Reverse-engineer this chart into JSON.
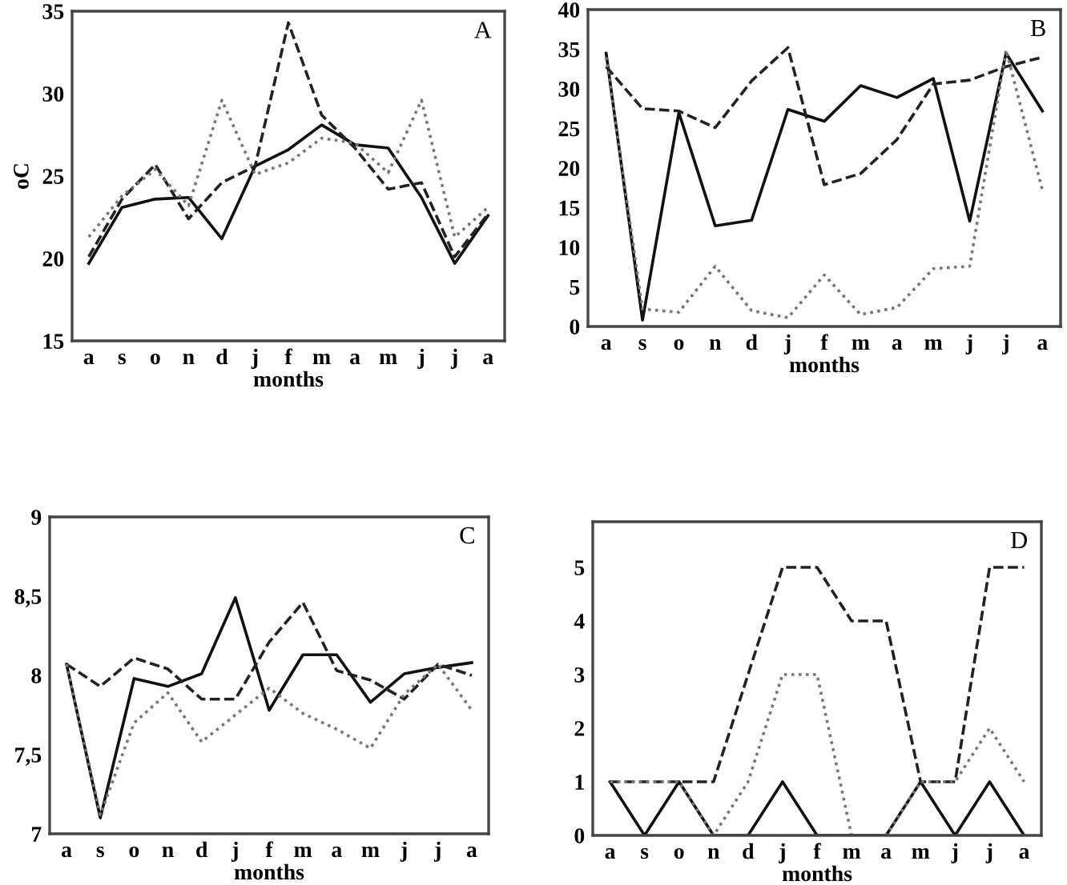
{
  "chart_data": [
    {
      "type": "line",
      "xlabel": "months",
      "ylabel": "oC",
      "annotations": [
        "A"
      ],
      "categories": [
        "a",
        "s",
        "o",
        "n",
        "d",
        "j",
        "f",
        "m",
        "a",
        "m",
        "j",
        "j",
        "a"
      ],
      "ylim": [
        15,
        35
      ],
      "yticks": [
        15,
        20,
        25,
        30,
        35
      ],
      "grid": false,
      "legend": false,
      "series": [
        {
          "color": "#111111",
          "line_style": "solid",
          "values": [
            19.7,
            23.1,
            23.6,
            23.7,
            21.2,
            25.6,
            26.6,
            28.1,
            26.9,
            26.7,
            23.7,
            19.7,
            22.6
          ]
        },
        {
          "color": "#222222",
          "line_style": "dashed",
          "values": [
            20.1,
            23.6,
            25.7,
            22.4,
            24.6,
            25.6,
            34.3,
            28.7,
            26.7,
            24.2,
            24.6,
            20.1,
            22.7
          ]
        },
        {
          "color": "#777777",
          "line_style": "dotted",
          "values": [
            21.3,
            23.8,
            25.4,
            23.2,
            29.6,
            25.1,
            25.8,
            27.3,
            27.0,
            25.2,
            29.6,
            21.3,
            23.1
          ]
        }
      ]
    },
    {
      "type": "line",
      "xlabel": "months",
      "annotations": [
        "B"
      ],
      "categories": [
        "a",
        "s",
        "o",
        "n",
        "d",
        "j",
        "f",
        "m",
        "a",
        "m",
        "j",
        "j",
        "a"
      ],
      "ylim": [
        0,
        40
      ],
      "yticks": [
        0,
        5,
        10,
        15,
        20,
        25,
        30,
        35,
        40
      ],
      "grid": false,
      "legend": false,
      "series": [
        {
          "color": "#111111",
          "line_style": "solid",
          "values": [
            34.5,
            0.8,
            27,
            12.7,
            13.4,
            27.4,
            25.9,
            30.4,
            28.9,
            31.3,
            13.3,
            34.5,
            27.2
          ]
        },
        {
          "color": "#222222",
          "line_style": "dashed",
          "values": [
            32.8,
            27.5,
            27.2,
            25.1,
            31,
            35.2,
            17.9,
            19.3,
            23.6,
            30.6,
            31.1,
            32.8,
            34
          ]
        },
        {
          "color": "#777777",
          "line_style": "dotted",
          "values": [
            34,
            2.2,
            1.8,
            7.6,
            2.0,
            1.1,
            6.5,
            1.5,
            2.4,
            7.3,
            7.6,
            34.9,
            17.2
          ]
        }
      ]
    },
    {
      "type": "line",
      "xlabel": "months",
      "annotations": [
        "C"
      ],
      "categories": [
        "a",
        "s",
        "o",
        "n",
        "d",
        "j",
        "f",
        "m",
        "a",
        "m",
        "j",
        "j",
        "a"
      ],
      "ylim": [
        7,
        9
      ],
      "yticks": [
        7,
        {
          "value": 7.5,
          "label": "7,5"
        },
        8,
        {
          "value": 8.5,
          "label": "8,5"
        },
        9
      ],
      "grid": false,
      "legend": false,
      "series": [
        {
          "color": "#111111",
          "line_style": "solid",
          "values": [
            8.07,
            7.1,
            7.98,
            7.93,
            8.01,
            8.49,
            7.78,
            8.13,
            8.13,
            7.83,
            8.01,
            8.05,
            8.08
          ]
        },
        {
          "color": "#222222",
          "line_style": "dashed",
          "values": [
            8.07,
            7.93,
            8.11,
            8.04,
            7.85,
            7.85,
            8.21,
            8.46,
            8.03,
            7.97,
            7.85,
            8.07,
            8.0
          ]
        },
        {
          "color": "#777777",
          "line_style": "dotted",
          "values": [
            8.07,
            7.12,
            7.7,
            7.89,
            7.58,
            7.75,
            7.92,
            7.76,
            7.66,
            7.54,
            7.88,
            8.07,
            7.78
          ]
        }
      ]
    },
    {
      "type": "line",
      "xlabel": "months",
      "annotations": [
        "D"
      ],
      "categories": [
        "a",
        "s",
        "o",
        "n",
        "d",
        "j",
        "f",
        "m",
        "a",
        "m",
        "j",
        "j",
        "a"
      ],
      "ylim": [
        0,
        5.85
      ],
      "yticks": [
        0,
        1,
        2,
        3,
        4,
        5
      ],
      "grid": false,
      "legend": false,
      "series": [
        {
          "color": "#111111",
          "line_style": "solid",
          "values": [
            1,
            0,
            1,
            0,
            0,
            1,
            0,
            0,
            0,
            1,
            0,
            1,
            0
          ]
        },
        {
          "color": "#222222",
          "line_style": "dashed",
          "values": [
            1,
            1,
            1,
            1,
            3,
            5,
            5,
            4,
            4,
            1,
            1,
            5,
            5
          ]
        },
        {
          "color": "#777777",
          "line_style": "dotted",
          "values": [
            1,
            1,
            1,
            0,
            1,
            3,
            3,
            0,
            0,
            1,
            1,
            2,
            1
          ]
        }
      ]
    }
  ]
}
